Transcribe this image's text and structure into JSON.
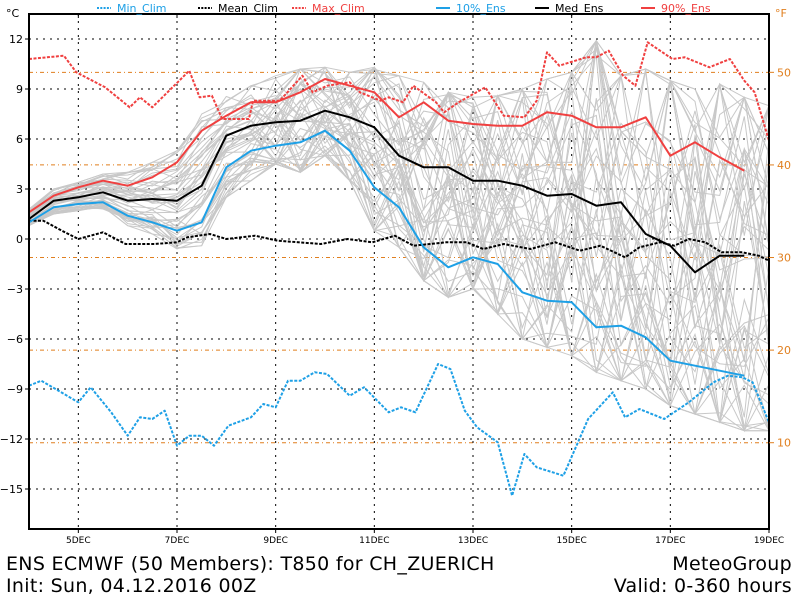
{
  "footer": {
    "title": "ENS ECMWF (50 Members): T850 for CH_ZUERICH",
    "init": "Init: Sun, 04.12.2016 00Z",
    "brand": "MeteoGroup",
    "valid": "Valid: 0-360 hours"
  },
  "colors": {
    "min_clim": "#1ea0e6",
    "mean_clim": "#000000",
    "max_clim": "#f04040",
    "ens_10": "#1ea0e6",
    "ens_med": "#000000",
    "ens_90": "#f04040",
    "members": "#c8c8c8",
    "fahrenheit": "#e07f1f"
  },
  "chart_data": {
    "type": "line",
    "title": "ENS ECMWF (50 Members): T850 for CH_ZUERICH",
    "subtitle": "Init: Sun, 04.12.2016 00Z",
    "ylabel": "°C",
    "ylabel_right": "°F",
    "xlabel": "",
    "ylim": [
      -17.4,
      13.5
    ],
    "xlim_hours": [
      0,
      360
    ],
    "yticks": [
      12,
      9,
      6,
      3,
      0,
      -3,
      -6,
      -9,
      -12,
      -15
    ],
    "yticks_labels": [
      "12",
      "9",
      "6",
      "3",
      "0",
      "-3",
      "-6",
      "-9",
      "-12",
      "-15"
    ],
    "yticks_right_f": [
      50,
      40,
      30,
      20,
      10
    ],
    "yticks_right_labels": [
      "50",
      "40",
      "30",
      "20",
      "10"
    ],
    "xticks_hours": [
      24,
      72,
      120,
      168,
      216,
      264,
      312,
      360
    ],
    "xticks_labels": [
      "5DEC",
      "7DEC",
      "9DEC",
      "11DEC",
      "13DEC",
      "15DEC",
      "17DEC",
      "19DEC"
    ],
    "grid": true,
    "legend_position": "top",
    "legend": [
      {
        "key": "min_clim",
        "label": "Min_Clim",
        "style": "dashed"
      },
      {
        "key": "mean_clim",
        "label": "Mean_Clim",
        "style": "dashed"
      },
      {
        "key": "max_clim",
        "label": "Max_Clim",
        "style": "dashed"
      },
      {
        "key": "ens_10",
        "label": "10%_Ens",
        "style": "solid"
      },
      {
        "key": "ens_med",
        "label": "Med_Ens",
        "style": "solid"
      },
      {
        "key": "ens_90",
        "label": "90%_Ens",
        "style": "solid"
      }
    ],
    "ens_hours": [
      0,
      12,
      24,
      36,
      48,
      60,
      72,
      84,
      96,
      108,
      120,
      132,
      144,
      156,
      168,
      180,
      192,
      204,
      216,
      228,
      240,
      252,
      264,
      276,
      288,
      300,
      312,
      324,
      336,
      348
    ],
    "series": [
      {
        "key": "ens_10",
        "name": "10%_Ens",
        "values": [
          1.0,
          1.9,
          2.1,
          2.2,
          1.4,
          1.0,
          0.5,
          1.0,
          4.3,
          5.3,
          5.6,
          5.8,
          6.5,
          5.3,
          3.1,
          1.9,
          -0.5,
          -1.7,
          -1.1,
          -1.5,
          -3.2,
          -3.7,
          -3.8,
          -5.3,
          -5.2,
          -5.9,
          -7.3,
          -7.6,
          -7.9,
          -8.2
        ]
      },
      {
        "key": "ens_med",
        "name": "Med_Ens",
        "values": [
          1.2,
          2.3,
          2.5,
          2.8,
          2.3,
          2.4,
          2.3,
          3.2,
          6.2,
          6.8,
          7.0,
          7.1,
          7.7,
          7.3,
          6.7,
          5.0,
          4.3,
          4.3,
          3.5,
          3.5,
          3.2,
          2.6,
          2.7,
          2.0,
          2.2,
          0.3,
          -0.4,
          -2.0,
          -1.0,
          -1.0
        ]
      },
      {
        "key": "ens_90",
        "name": "90%_Ens",
        "values": [
          1.6,
          2.6,
          3.1,
          3.5,
          3.2,
          3.7,
          4.6,
          6.5,
          7.4,
          8.2,
          8.2,
          8.8,
          9.6,
          9.2,
          8.8,
          7.3,
          8.2,
          7.1,
          6.9,
          6.8,
          6.8,
          7.6,
          7.4,
          6.7,
          6.7,
          7.3,
          5.0,
          5.8,
          4.9,
          4.1
        ]
      },
      {
        "key": "min_clim",
        "name": "Min_Clim",
        "hours": [
          0,
          6,
          24,
          30,
          40,
          48,
          54,
          60,
          66,
          72,
          78,
          84,
          90,
          97,
          108,
          114,
          120,
          126,
          132,
          139,
          145,
          156,
          163,
          175,
          181,
          188,
          199,
          205,
          212,
          218,
          228,
          235,
          241,
          247,
          260,
          272,
          284,
          290,
          297,
          309,
          321,
          333,
          340,
          347,
          352,
          360
        ],
        "values": [
          -8.8,
          -8.5,
          -9.8,
          -8.9,
          -10.4,
          -11.8,
          -10.7,
          -10.8,
          -10.3,
          -12.4,
          -11.8,
          -11.8,
          -12.4,
          -11.2,
          -10.7,
          -9.9,
          -10.1,
          -8.5,
          -8.5,
          -8.0,
          -8.1,
          -9.4,
          -8.9,
          -10.4,
          -10.1,
          -10.4,
          -7.5,
          -7.8,
          -10.3,
          -11.3,
          -12.2,
          -15.4,
          -12.9,
          -13.7,
          -14.2,
          -10.8,
          -9.2,
          -10.7,
          -10.2,
          -10.8,
          -9.8,
          -8.6,
          -8.2,
          -8.3,
          -8.6,
          -11.0
        ]
      },
      {
        "key": "mean_clim",
        "name": "Mean_Clim",
        "hours": [
          0,
          7,
          16,
          24,
          36,
          47,
          61,
          72,
          77,
          88,
          96,
          110,
          121,
          142,
          155,
          167,
          178,
          187,
          203,
          213,
          221,
          231,
          244,
          256,
          268,
          278,
          290,
          297,
          307,
          314,
          321,
          329,
          337,
          347,
          355,
          360
        ],
        "values": [
          1.1,
          1.1,
          0.5,
          0.0,
          0.4,
          -0.3,
          -0.3,
          -0.2,
          0.1,
          0.3,
          0.0,
          0.2,
          -0.1,
          -0.3,
          0.0,
          -0.2,
          0.2,
          -0.4,
          -0.2,
          -0.2,
          -0.6,
          -0.3,
          -0.6,
          -0.2,
          -0.7,
          -0.4,
          -1.1,
          -0.5,
          -0.2,
          -0.4,
          0.0,
          -0.2,
          -0.8,
          -0.8,
          -1.0,
          -1.3
        ]
      },
      {
        "key": "max_clim",
        "name": "Max_Clim",
        "hours": [
          0,
          17,
          23,
          37,
          49,
          54,
          60,
          78,
          83,
          89,
          94,
          107,
          109,
          122,
          133,
          138,
          145,
          156,
          161,
          171,
          175,
          182,
          187,
          198,
          202,
          209,
          222,
          231,
          241,
          247,
          252,
          258,
          271,
          276,
          282,
          289,
          295,
          301,
          307,
          313,
          319,
          331,
          341,
          348,
          353,
          360
        ],
        "values": [
          10.8,
          11.0,
          10.0,
          9.1,
          7.9,
          8.5,
          7.9,
          10.1,
          8.5,
          8.6,
          7.2,
          7.2,
          8.3,
          8.3,
          9.8,
          8.8,
          9.2,
          9.4,
          8.8,
          8.3,
          8.5,
          8.2,
          9.2,
          8.2,
          7.6,
          8.2,
          9.1,
          7.4,
          7.3,
          8.3,
          11.2,
          10.4,
          10.9,
          10.9,
          11.3,
          9.8,
          9.2,
          11.8,
          11.3,
          10.8,
          10.9,
          10.3,
          10.8,
          9.5,
          8.8,
          5.9
        ]
      }
    ],
    "members": {
      "count": 50,
      "hours": [
        0,
        12,
        24,
        36,
        48,
        60,
        72,
        84,
        96,
        108,
        120,
        132,
        144,
        156,
        168,
        180,
        192,
        204,
        216,
        228,
        240,
        252,
        264,
        276,
        288,
        300,
        312,
        324,
        336,
        348,
        360
      ],
      "min": [
        0.8,
        1.5,
        1.7,
        1.8,
        0.8,
        0.3,
        -0.6,
        -0.4,
        2.5,
        3.5,
        4.5,
        4.0,
        5.0,
        3.5,
        0.5,
        -0.5,
        -2.5,
        -3.5,
        -3.0,
        -4.5,
        -6.0,
        -6.5,
        -7.0,
        -8.0,
        -8.5,
        -9.0,
        -10.0,
        -10.5,
        -11.0,
        -11.5,
        -11.5
      ],
      "max": [
        1.8,
        3.0,
        3.4,
        3.9,
        4.0,
        4.6,
        5.3,
        7.5,
        8.6,
        9.2,
        9.8,
        10.2,
        10.3,
        10.0,
        10.3,
        9.8,
        9.4,
        8.8,
        8.5,
        8.6,
        9.0,
        9.6,
        10.0,
        11.9,
        9.8,
        10.2,
        9.5,
        9.0,
        9.3,
        8.5,
        8.0
      ]
    }
  }
}
